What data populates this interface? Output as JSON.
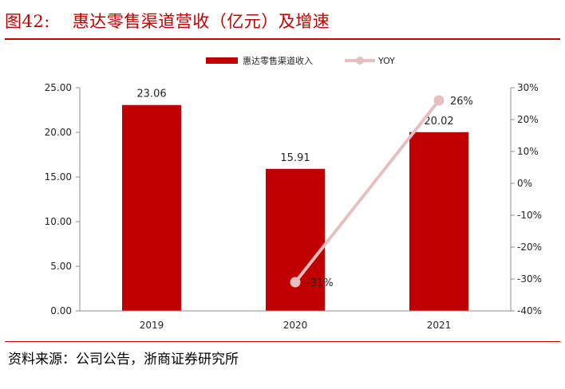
{
  "figure": {
    "number": "图42:",
    "title": "惠达零售渠道营收（亿元）及增速",
    "source": "资料来源：公司公告，浙商证券研究所"
  },
  "chart_data": {
    "type": "bar",
    "categories": [
      "2019",
      "2020",
      "2021"
    ],
    "series": [
      {
        "name": "惠达零售渠道收入",
        "type": "bar",
        "axis": "left",
        "values": [
          23.06,
          15.91,
          20.02
        ],
        "labels": [
          "23.06",
          "15.91",
          "20.02"
        ],
        "color": "#c00000"
      },
      {
        "name": "YOY",
        "type": "line",
        "axis": "right",
        "values": [
          null,
          -31,
          26
        ],
        "labels": [
          "",
          "-31%",
          "26%"
        ],
        "color": "#e6bfc0"
      }
    ],
    "y_left": {
      "range": [
        0,
        25
      ],
      "ticks": [
        "0.00",
        "5.00",
        "10.00",
        "15.00",
        "20.00",
        "25.00"
      ]
    },
    "y_right": {
      "range": [
        -40,
        30
      ],
      "ticks": [
        "-40%",
        "-30%",
        "-20%",
        "-10%",
        "0%",
        "10%",
        "20%",
        "30%"
      ]
    },
    "grid": false,
    "legend_position": "top-center"
  }
}
